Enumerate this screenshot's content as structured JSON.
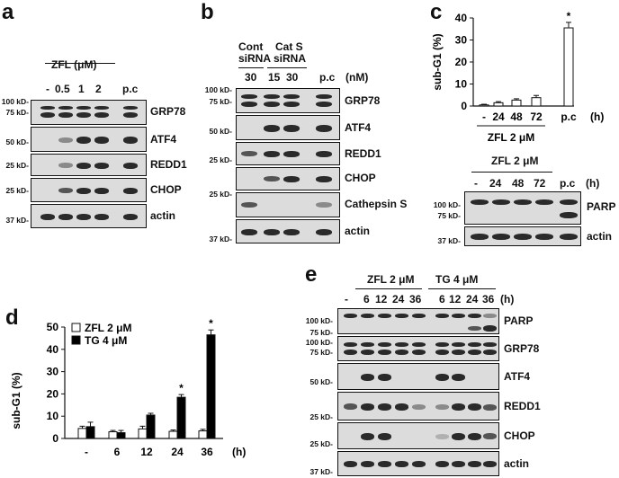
{
  "panels": {
    "a": {
      "letter": "a",
      "treatment": "ZFL (μM)",
      "doses": [
        "-",
        "0.5",
        "1",
        "2"
      ],
      "pc": "p.c",
      "mw": [
        "100 kD-",
        "75 kD-",
        "50 kD-",
        "25 kD-",
        "25 kD-",
        "37 kD-"
      ],
      "proteins": [
        "GRP78",
        "ATF4",
        "REDD1",
        "CHOP",
        "actin"
      ]
    },
    "b": {
      "letter": "b",
      "group1": "Cont",
      "group1b": "siRNA",
      "group2": "Cat S",
      "group2b": "siRNA",
      "unit": "(nM)",
      "doses": [
        "30",
        "15",
        "30"
      ],
      "pc": "p.c",
      "mw": [
        "100 kD-",
        "75 kD-",
        "50 kD-",
        "25 kD-",
        "25 kD-",
        "37 kD-"
      ],
      "proteins": [
        "GRP78",
        "ATF4",
        "REDD1",
        "CHOP",
        "Cathepsin S",
        "actin"
      ]
    },
    "c": {
      "letter": "c",
      "treatment": "ZFL 2 μM",
      "times": [
        "-",
        "24",
        "48",
        "72"
      ],
      "pc": "p.c",
      "unit": "(h)",
      "mw": [
        "100 kD-",
        "75 kD-",
        "37 kD-"
      ],
      "proteins": [
        "PARP",
        "actin"
      ]
    },
    "d": {
      "letter": "d",
      "unit": "(h)"
    },
    "e": {
      "letter": "e",
      "treatment1": "ZFL 2 μM",
      "treatment2": "TG 4 μM",
      "unit": "(h)",
      "times1": [
        "-",
        "6",
        "12",
        "24",
        "36"
      ],
      "times2": [
        "6",
        "12",
        "24",
        "36"
      ],
      "mw": [
        "100 kD-",
        "75 kD-",
        "100 kD-",
        "75 kD-",
        "50 kD-",
        "25 kD-",
        "25 kD-",
        "37 kD-"
      ],
      "proteins": [
        "PARP",
        "GRP78",
        "ATF4",
        "REDD1",
        "CHOP",
        "actin"
      ]
    }
  },
  "chart_data": [
    {
      "type": "bar",
      "panel": "c",
      "categories": [
        "-",
        "24",
        "48",
        "72",
        "p.c"
      ],
      "values": [
        0.5,
        1.5,
        2.7,
        3.8,
        35.5
      ],
      "errors": [
        0.3,
        0.5,
        0.6,
        1.0,
        2.5
      ],
      "significant": [
        false,
        false,
        false,
        false,
        true
      ],
      "ylabel": "sub-G1 (%)",
      "yticks": [
        "0",
        "10",
        "20",
        "30",
        "40"
      ],
      "ylim": [
        0,
        40
      ],
      "xunit": "(h)",
      "xlabel": "ZFL 2 μM",
      "star": "*"
    },
    {
      "type": "bar",
      "panel": "d",
      "categories": [
        "-",
        "6",
        "12",
        "24",
        "36"
      ],
      "series": [
        {
          "name": "ZFL 2 μM",
          "values": [
            4.5,
            3.0,
            4.3,
            3.2,
            3.4
          ],
          "errors": [
            1.0,
            0.6,
            1.2,
            0.6,
            0.7
          ],
          "color": "#ffffff"
        },
        {
          "name": "TG 4 μM",
          "values": [
            5.3,
            2.6,
            10.5,
            18.5,
            46.5
          ],
          "errors": [
            2.0,
            1.0,
            0.8,
            1.2,
            2.2
          ],
          "color": "#000000"
        }
      ],
      "significant": [
        false,
        false,
        false,
        true,
        true
      ],
      "ylabel": "sub-G1 (%)",
      "yticks": [
        "0",
        "10",
        "20",
        "30",
        "40",
        "50"
      ],
      "ylim": [
        0,
        50
      ],
      "xunit": "(h)",
      "legend": "top-left",
      "star": "*"
    }
  ]
}
